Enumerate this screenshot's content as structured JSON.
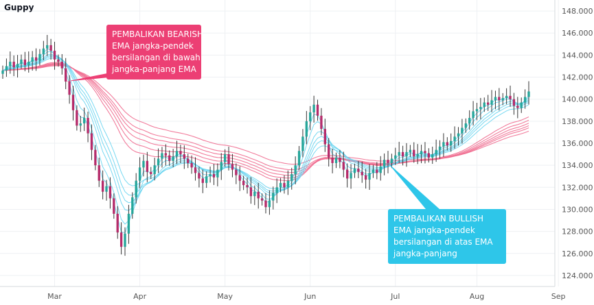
{
  "chart_data": {
    "type": "candlestick",
    "title": "Guppy",
    "y_axis": {
      "ylim": [
        123,
        149
      ],
      "ticks": [
        "124.000",
        "126.000",
        "128.000",
        "130.000",
        "132.000",
        "134.000",
        "136.000",
        "138.000",
        "140.000",
        "142.000",
        "144.000",
        "146.000",
        "148.000"
      ],
      "position": "right"
    },
    "x_axis": {
      "tick_labels": [
        "Mar",
        "Apr",
        "May",
        "Jun",
        "Jul",
        "Aug",
        "Sep"
      ],
      "tick_index": [
        14,
        37,
        60,
        83,
        106,
        128,
        150
      ]
    },
    "grid": true,
    "colors": {
      "up": "#26a69a",
      "down": "#b52b6a",
      "short_ema": "#67d4ef",
      "long_ema": "#ef6b8f",
      "grid": "#eef0f3",
      "axis_text": "#555555"
    },
    "close": [
      142.6,
      143.0,
      143.4,
      142.9,
      143.2,
      143.6,
      143.1,
      143.4,
      143.8,
      143.5,
      144.1,
      144.6,
      144.9,
      144.4,
      143.6,
      143.4,
      142.8,
      141.6,
      140.4,
      139.0,
      137.6,
      137.8,
      138.3,
      136.9,
      135.4,
      134.0,
      132.6,
      131.6,
      132.1,
      131.0,
      129.6,
      127.9,
      126.6,
      127.8,
      129.6,
      131.1,
      132.6,
      133.8,
      134.4,
      133.4,
      133.2,
      134.0,
      134.6,
      135.1,
      134.9,
      134.4,
      134.8,
      135.3,
      135.0,
      134.6,
      134.2,
      133.8,
      133.3,
      132.8,
      132.4,
      133.0,
      133.2,
      132.9,
      133.6,
      134.3,
      135.0,
      134.1,
      133.6,
      133.1,
      132.6,
      132.2,
      132.0,
      131.2,
      131.6,
      131.0,
      130.8,
      130.2,
      130.8,
      131.5,
      132.0,
      132.4,
      132.0,
      132.6,
      133.2,
      134.0,
      135.3,
      136.6,
      138.0,
      138.8,
      139.5,
      138.5,
      137.3,
      135.9,
      134.7,
      134.2,
      134.7,
      134.3,
      133.6,
      132.8,
      133.3,
      133.7,
      133.4,
      133.1,
      132.7,
      133.3,
      133.6,
      133.3,
      133.9,
      134.5,
      134.2,
      134.6,
      134.9,
      135.2,
      134.8,
      135.2,
      135.4,
      134.8,
      135.0,
      135.3,
      135.1,
      134.7,
      135.0,
      135.4,
      135.7,
      136.1,
      135.8,
      136.2,
      136.6,
      136.9,
      137.4,
      137.8,
      138.3,
      138.9,
      139.1,
      139.3,
      139.7,
      139.5,
      139.9,
      140.2,
      139.9,
      140.1,
      140.3,
      140.0,
      139.4,
      139.2,
      139.7,
      140.2,
      140.7
    ]
  },
  "annotations": {
    "bearish": {
      "lines": [
        "PEMBALIKAN BEARISH",
        "EMA jangka-pendek",
        "bersilangan di bawah",
        "jangka-panjang EMA"
      ],
      "color": "#ec3f74"
    },
    "bullish": {
      "lines": [
        "PEMBALIKAN BULLISH",
        "EMA jangka-pendek",
        "bersilangan di atas EMA",
        "jangka-panjang"
      ],
      "color": "#2ec6e9"
    }
  }
}
